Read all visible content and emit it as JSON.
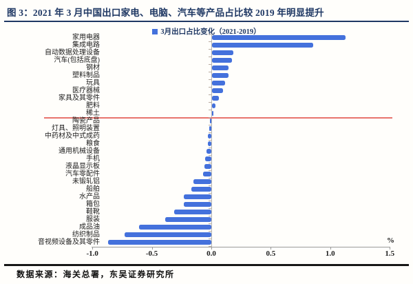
{
  "header": {
    "title": "图 3：2021 年 3 月中国出口家电、电脑、汽车等产品占比较 2019 年明显提升"
  },
  "legend": {
    "label": "3月出口占比变化（2021-2019）",
    "swatch": "blue-square-icon"
  },
  "footer": {
    "source": "数据来源：海关总署，东吴证券研究所"
  },
  "colors": {
    "bar": "#4471DC",
    "title_navy": "#1F3864",
    "annotation_red": "#E8736C"
  },
  "chart_data": {
    "type": "bar",
    "orientation": "horizontal",
    "title": "图 3：2021 年 3 月中国出口家电、电脑、汽车等产品占比较 2019 年明显提升",
    "legend_entries": [
      "3月出口占比变化（2021-2019）"
    ],
    "unit": "%",
    "xlabel": "%",
    "xlim": [
      -1.0,
      1.5
    ],
    "xticks": [
      -1.0,
      -0.5,
      0.0,
      0.5,
      1.0,
      1.5
    ],
    "xtick_labels": [
      "-1.0",
      "-0.5",
      "0.0",
      "0.5",
      "1.0",
      "1.5"
    ],
    "grid": false,
    "legend_position": "top-center",
    "annotation_line_after_category": "稀土",
    "categories": [
      "家用电器",
      "集成电路",
      "自动数据处理设备",
      "汽车(包括底盘)",
      "钢材",
      "塑料制品",
      "玩具",
      "医疗器械",
      "家具及其零件",
      "肥料",
      "稀土",
      "陶瓷产品",
      "灯具、照明装置",
      "中药材及中式成药",
      "粮食",
      "通用机械设备",
      "手机",
      "液晶显示板",
      "汽车零配件",
      "未锻轧铝",
      "船舶",
      "水产品",
      "箱包",
      "鞋靴",
      "服装",
      "成品油",
      "纺织制品",
      "音视频设备及其零件"
    ],
    "values": [
      1.12,
      0.85,
      0.18,
      0.17,
      0.14,
      0.14,
      0.11,
      0.09,
      0.06,
      0.03,
      0.01,
      -0.01,
      -0.02,
      -0.03,
      -0.03,
      -0.04,
      -0.05,
      -0.06,
      -0.07,
      -0.15,
      -0.17,
      -0.23,
      -0.23,
      -0.31,
      -0.39,
      -0.61,
      -0.73,
      -0.87
    ]
  }
}
